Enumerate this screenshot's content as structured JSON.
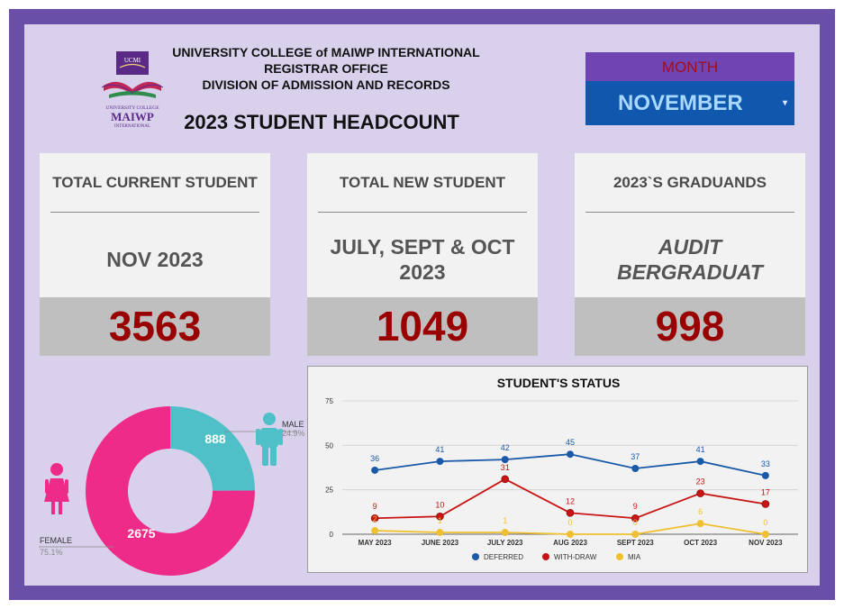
{
  "header": {
    "line1": "UNIVERSITY COLLEGE of MAIWP INTERNATIONAL",
    "line2": "REGISTRAR OFFICE",
    "line3": "DIVISION OF ADMISSION AND RECORDS",
    "title": "2023 STUDENT HEADCOUNT",
    "logo": {
      "top_text": "UCMI",
      "name_small": "UNIVERSITY COLLEGE",
      "name_big": "MAIWP",
      "name_sub": "INTERNATIONAL"
    }
  },
  "month_filter": {
    "label": "MONTH",
    "selected": "NOVEMBER",
    "icon": "dropdown-caret-icon"
  },
  "cards": [
    {
      "title": "TOTAL CURRENT STUDENT",
      "subtitle": "NOV 2023",
      "value": "3563"
    },
    {
      "title": "TOTAL NEW STUDENT",
      "subtitle": "JULY, SEPT & OCT 2023",
      "value": "1049"
    },
    {
      "title": "2023`S GRADUANDS",
      "subtitle": "AUDIT BERGRADUAT",
      "value": "998"
    }
  ],
  "colors": {
    "frame": "#6a4fa8",
    "background": "#d9d0ec",
    "value_red": "#990000",
    "deferred": "#1a5aa8",
    "withdraw": "#c81414",
    "mia": "#f0c030",
    "male": "#4fc0c8",
    "female": "#ee2b88"
  },
  "chart_data": [
    {
      "type": "pie",
      "donut": true,
      "title": "",
      "categories": [
        "MALE",
        "FEMALE"
      ],
      "values": [
        888,
        2675
      ],
      "percent_labels": [
        "24.9%",
        "75.1%"
      ],
      "colors": [
        "#4fc0c8",
        "#ee2b88"
      ],
      "icons": [
        "male-person-icon",
        "female-person-icon"
      ]
    },
    {
      "type": "line",
      "title": "STUDENT'S STATUS",
      "categories": [
        "MAY 2023",
        "JUNE 2023",
        "JULY 2023",
        "AUG 2023",
        "SEPT 2023",
        "OCT 2023",
        "NOV 2023"
      ],
      "ylim": [
        0,
        75
      ],
      "yticks": [
        0,
        25,
        50,
        75
      ],
      "grid": true,
      "legend_position": "bottom",
      "series": [
        {
          "name": "DEFERRED",
          "color": "#1a5aa8",
          "values": [
            36,
            41,
            42,
            45,
            37,
            41,
            33
          ]
        },
        {
          "name": "WITH-DRAW",
          "color": "#c81414",
          "values": [
            9,
            10,
            31,
            12,
            9,
            23,
            17
          ]
        },
        {
          "name": "MIA",
          "color": "#f0c030",
          "values": [
            2,
            1,
            1,
            0,
            0,
            6,
            0
          ]
        }
      ]
    }
  ]
}
